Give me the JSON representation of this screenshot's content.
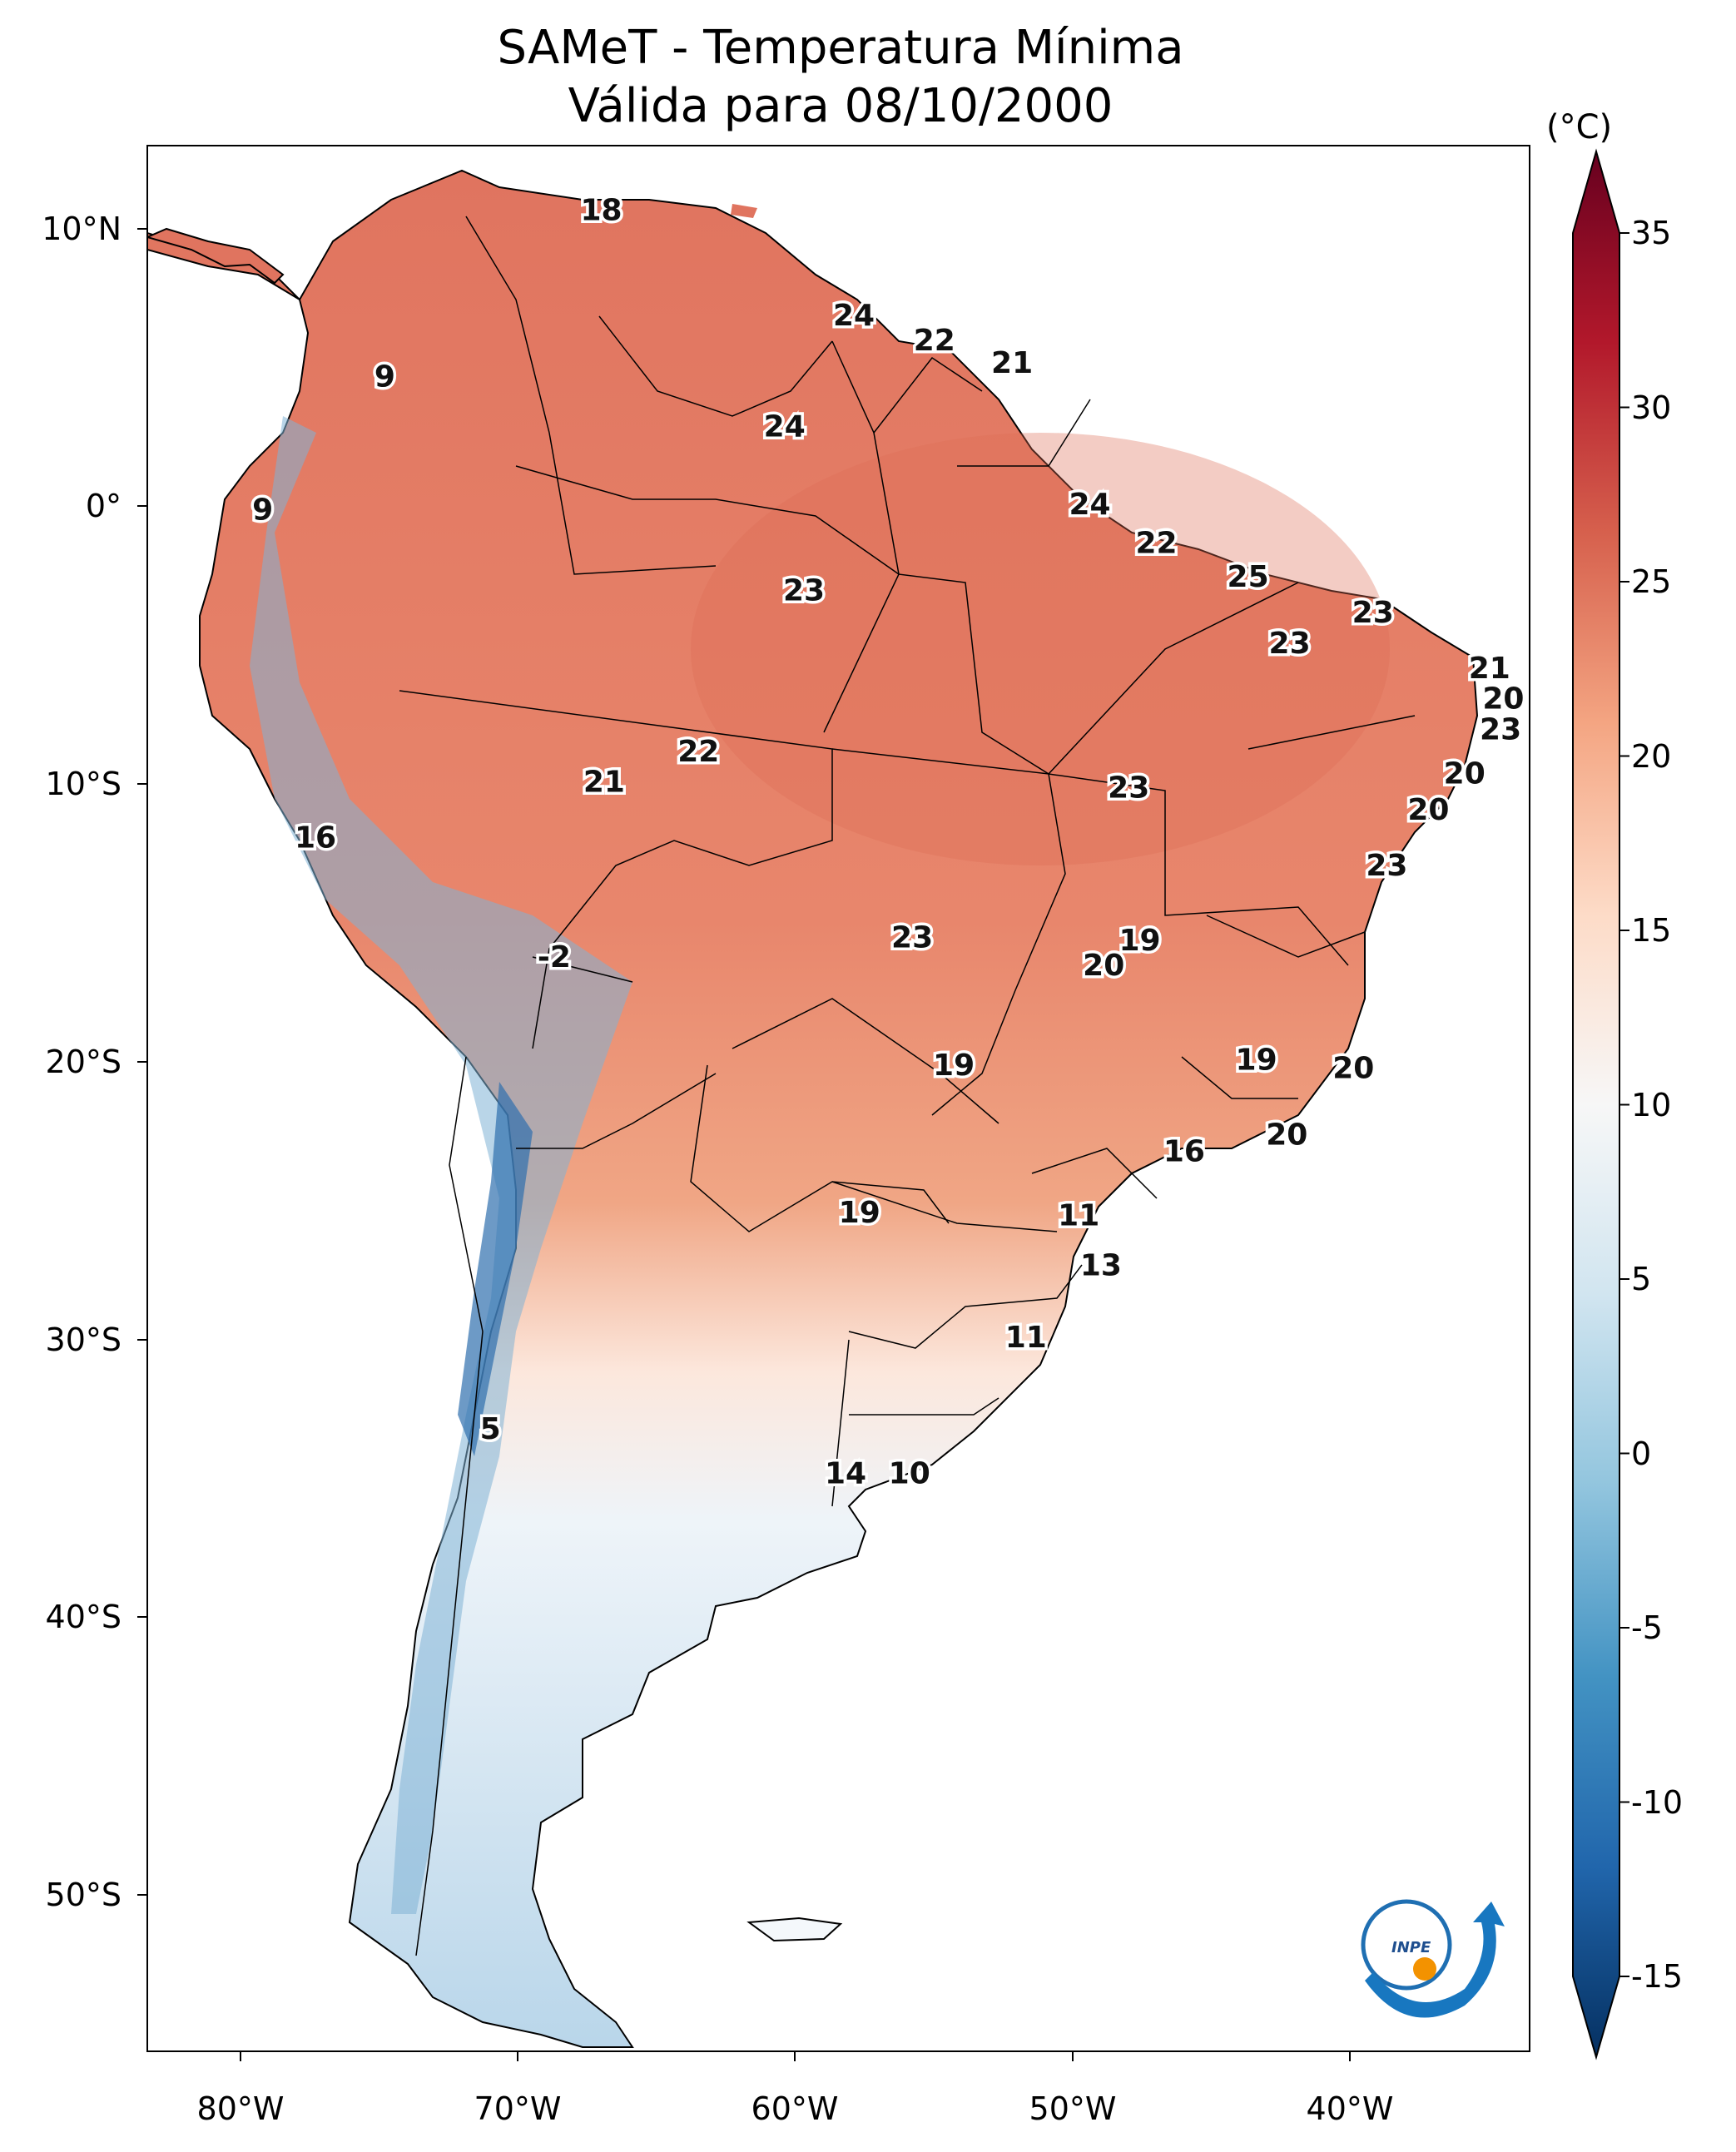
{
  "title": {
    "line1": "SAMeT - Temperatura Mínima",
    "line2": "Válida para 08/10/2000"
  },
  "colorbar": {
    "unit": "(°C)",
    "ticks": [
      "35",
      "30",
      "25",
      "20",
      "15",
      "10",
      "5",
      "0",
      "-5",
      "-10",
      "-15"
    ],
    "range": [
      -15,
      35
    ],
    "extend": "both",
    "colormap": "RdBu_r"
  },
  "axes": {
    "lat_labels": [
      "10°N",
      "0°",
      "10°S",
      "20°S",
      "30°S",
      "40°S",
      "50°S"
    ],
    "lon_labels": [
      "80°W",
      "70°W",
      "60°W",
      "50°W",
      "40°W"
    ],
    "extent": {
      "lon": [
        -83,
        -33
      ],
      "lat": [
        -56,
        13
      ]
    }
  },
  "temperature_labels": [
    {
      "value": "18",
      "lon": -67.0,
      "lat": 10.6
    },
    {
      "value": "9",
      "lon": -74.8,
      "lat": 4.6
    },
    {
      "value": "9",
      "lon": -79.2,
      "lat": -0.2
    },
    {
      "value": "24",
      "lon": -57.9,
      "lat": 6.8
    },
    {
      "value": "22",
      "lon": -55.0,
      "lat": 5.9
    },
    {
      "value": "21",
      "lon": -52.2,
      "lat": 5.1
    },
    {
      "value": "24",
      "lon": -60.4,
      "lat": 2.8
    },
    {
      "value": "24",
      "lon": -49.4,
      "lat": 0.0
    },
    {
      "value": "22",
      "lon": -47.0,
      "lat": -1.4
    },
    {
      "value": "25",
      "lon": -43.7,
      "lat": -2.6
    },
    {
      "value": "23",
      "lon": -59.7,
      "lat": -3.1
    },
    {
      "value": "23",
      "lon": -39.2,
      "lat": -3.9
    },
    {
      "value": "23",
      "lon": -42.2,
      "lat": -5.0
    },
    {
      "value": "21",
      "lon": -35.0,
      "lat": -5.9
    },
    {
      "value": "20",
      "lon": -34.5,
      "lat": -7.0
    },
    {
      "value": "23",
      "lon": -34.6,
      "lat": -8.1
    },
    {
      "value": "22",
      "lon": -63.5,
      "lat": -8.9
    },
    {
      "value": "21",
      "lon": -66.9,
      "lat": -10.0
    },
    {
      "value": "23",
      "lon": -48.0,
      "lat": -10.2
    },
    {
      "value": "20",
      "lon": -35.9,
      "lat": -9.7
    },
    {
      "value": "20",
      "lon": -37.2,
      "lat": -11.0
    },
    {
      "value": "16",
      "lon": -77.3,
      "lat": -12.0
    },
    {
      "value": "23",
      "lon": -38.7,
      "lat": -13.0
    },
    {
      "value": "23",
      "lon": -55.8,
      "lat": -15.6
    },
    {
      "value": "19",
      "lon": -47.6,
      "lat": -15.7
    },
    {
      "value": "-2",
      "lon": -68.7,
      "lat": -16.3
    },
    {
      "value": "20",
      "lon": -48.9,
      "lat": -16.6
    },
    {
      "value": "19",
      "lon": -43.4,
      "lat": -20.0
    },
    {
      "value": "19",
      "lon": -54.3,
      "lat": -20.2
    },
    {
      "value": "20",
      "lon": -39.9,
      "lat": -20.3
    },
    {
      "value": "20",
      "lon": -42.3,
      "lat": -22.7
    },
    {
      "value": "16",
      "lon": -46.0,
      "lat": -23.3
    },
    {
      "value": "19",
      "lon": -57.7,
      "lat": -25.5
    },
    {
      "value": "11",
      "lon": -49.8,
      "lat": -25.6
    },
    {
      "value": "13",
      "lon": -49.0,
      "lat": -27.4
    },
    {
      "value": "11",
      "lon": -51.7,
      "lat": -30.0
    },
    {
      "value": "5",
      "lon": -71.0,
      "lat": -33.3
    },
    {
      "value": "14",
      "lon": -58.2,
      "lat": -34.9
    },
    {
      "value": "10",
      "lon": -55.9,
      "lat": -34.9
    }
  ],
  "logo": {
    "text": "INPE"
  }
}
